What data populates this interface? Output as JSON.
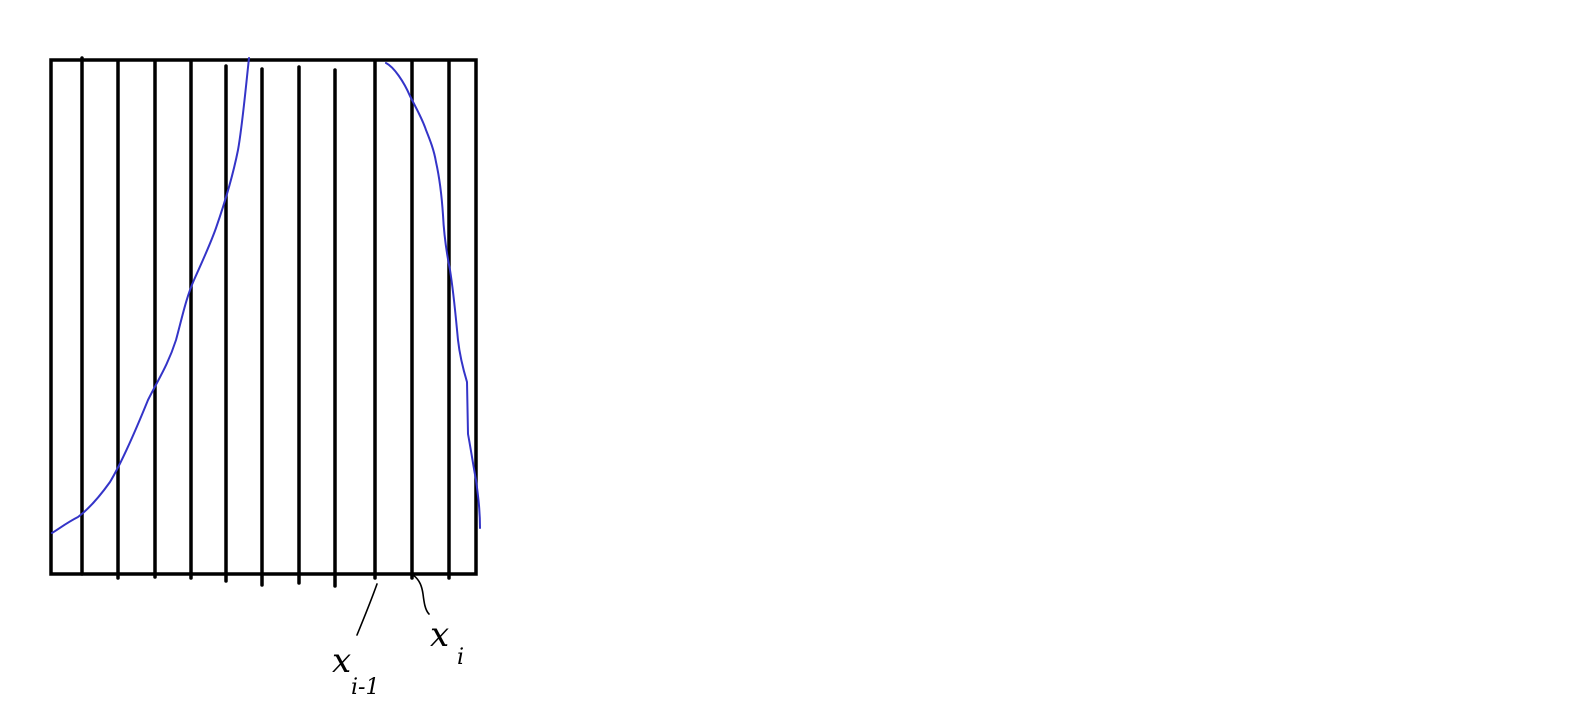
{
  "diagram": {
    "labels": {
      "left_partition_point": {
        "base": "x",
        "subscript": "i-1"
      },
      "right_partition_point": {
        "base": "x",
        "subscript": "i"
      }
    },
    "colors": {
      "frame": "#000000",
      "strips": "#000000",
      "curves": "#3434c8",
      "background": "#ffffff"
    }
  }
}
